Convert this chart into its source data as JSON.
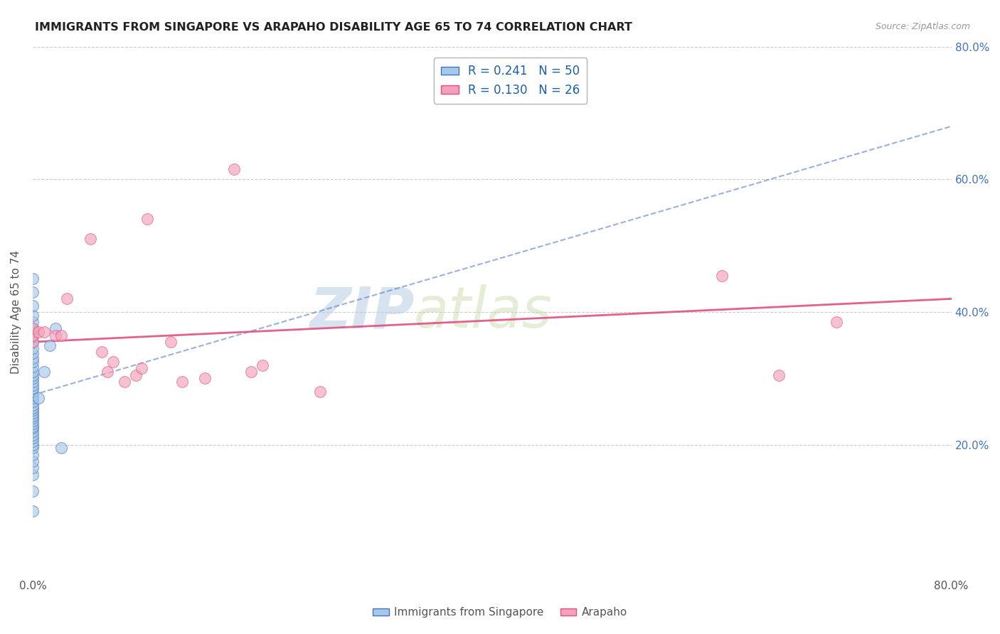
{
  "title": "IMMIGRANTS FROM SINGAPORE VS ARAPAHO DISABILITY AGE 65 TO 74 CORRELATION CHART",
  "source": "Source: ZipAtlas.com",
  "ylabel": "Disability Age 65 to 74",
  "watermark_zip": "ZIP",
  "watermark_atlas": "atlas",
  "legend_label1": "R = 0.241   N = 50",
  "legend_label2": "R = 0.130   N = 26",
  "legend_label_bottom1": "Immigrants from Singapore",
  "legend_label_bottom2": "Arapaho",
  "color_singapore": "#a8c8e8",
  "color_arapaho": "#f4a0b8",
  "color_singapore_line": "#4472c4",
  "color_arapaho_line": "#e05080",
  "xlim": [
    0.0,
    0.8
  ],
  "ylim": [
    0.0,
    0.8
  ],
  "singapore_x": [
    0.0,
    0.0,
    0.0,
    0.0,
    0.0,
    0.0,
    0.0,
    0.0,
    0.0,
    0.0,
    0.0,
    0.0,
    0.0,
    0.0,
    0.0,
    0.0,
    0.0,
    0.0,
    0.0,
    0.0,
    0.0,
    0.0,
    0.0,
    0.0,
    0.0,
    0.0,
    0.0,
    0.0,
    0.0,
    0.0,
    0.0,
    0.0,
    0.0,
    0.0,
    0.0,
    0.0,
    0.0,
    0.0,
    0.0,
    0.0,
    0.0,
    0.0,
    0.0,
    0.0,
    0.0,
    0.005,
    0.01,
    0.015,
    0.02,
    0.025
  ],
  "singapore_y": [
    0.1,
    0.13,
    0.155,
    0.165,
    0.175,
    0.185,
    0.195,
    0.2,
    0.205,
    0.21,
    0.215,
    0.22,
    0.225,
    0.228,
    0.232,
    0.236,
    0.24,
    0.244,
    0.248,
    0.252,
    0.256,
    0.26,
    0.265,
    0.27,
    0.275,
    0.28,
    0.285,
    0.29,
    0.295,
    0.3,
    0.305,
    0.31,
    0.318,
    0.325,
    0.33,
    0.338,
    0.345,
    0.355,
    0.365,
    0.375,
    0.385,
    0.395,
    0.41,
    0.43,
    0.45,
    0.27,
    0.31,
    0.35,
    0.375,
    0.195
  ],
  "arapaho_x": [
    0.0,
    0.0,
    0.0,
    0.005,
    0.01,
    0.02,
    0.025,
    0.03,
    0.05,
    0.06,
    0.065,
    0.07,
    0.08,
    0.09,
    0.095,
    0.1,
    0.12,
    0.13,
    0.15,
    0.175,
    0.19,
    0.2,
    0.25,
    0.6,
    0.65,
    0.7
  ],
  "arapaho_y": [
    0.355,
    0.365,
    0.375,
    0.37,
    0.37,
    0.365,
    0.365,
    0.42,
    0.51,
    0.34,
    0.31,
    0.325,
    0.295,
    0.305,
    0.315,
    0.54,
    0.355,
    0.295,
    0.3,
    0.615,
    0.31,
    0.32,
    0.28,
    0.455,
    0.305,
    0.385
  ],
  "sg_line_x": [
    0.0,
    0.8
  ],
  "sg_line_y": [
    0.275,
    0.68
  ],
  "ar_line_x": [
    0.0,
    0.8
  ],
  "ar_line_y": [
    0.355,
    0.42
  ]
}
